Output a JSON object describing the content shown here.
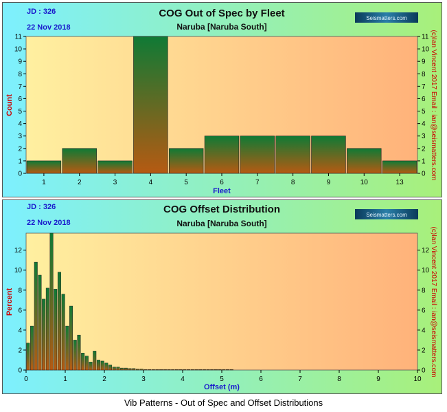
{
  "caption": "Vib Patterns - Out of Spec and Offset Distributions",
  "colors": {
    "panel_gradient_left": "#7df0ff",
    "panel_gradient_right": "#a8f07a",
    "plot_gradient_left": "#fff0a0",
    "plot_gradient_right": "#ffb27a",
    "bar_top": "#0f7a35",
    "bar_bottom": "#b65a12",
    "title_text": "#111111",
    "blue_text": "#1a1acc",
    "red_text": "#cc0000"
  },
  "logo_text": "Seismatters.com",
  "chart_data": [
    {
      "type": "bar",
      "jd": "JD : 326",
      "date": "22 Nov 2018",
      "title": "COG Out of Spec by Fleet",
      "subtitle": "Naruba  [Naruba South]",
      "xlabel": "Fleet",
      "ylabel": "Count",
      "right_label": "(c)Ian Vincent 2017   Email : ian@seismatters.com",
      "categories": [
        "1",
        "2",
        "3",
        "4",
        "5",
        "6",
        "7",
        "8",
        "9",
        "10",
        "13"
      ],
      "values": [
        1,
        2,
        1,
        11,
        2,
        3,
        3,
        3,
        3,
        2,
        1
      ],
      "ylim": [
        0,
        11
      ],
      "yticks": [
        "0",
        "1",
        "2",
        "3",
        "4",
        "5",
        "6",
        "7",
        "8",
        "9",
        "10",
        "11"
      ],
      "grid": false,
      "legend": "none"
    },
    {
      "type": "bar",
      "jd": "JD : 326",
      "date": "22 Nov 2018",
      "title": "COG Offset Distribution",
      "subtitle": "Naruba  [Naruba South]",
      "xlabel": "Offset (m)",
      "ylabel": "Percent",
      "right_label": "(c)Ian Vincent 2017   Email : ian@seismatters.com",
      "bin_width": 0.1,
      "x": [
        0.05,
        0.15,
        0.25,
        0.35,
        0.45,
        0.55,
        0.65,
        0.75,
        0.85,
        0.95,
        1.05,
        1.15,
        1.25,
        1.35,
        1.45,
        1.55,
        1.65,
        1.75,
        1.85,
        1.95,
        2.05,
        2.15,
        2.25,
        2.35,
        2.45,
        2.55,
        2.65,
        2.75,
        2.85,
        2.95,
        3.05,
        3.15,
        3.25,
        3.35,
        3.45,
        3.55,
        3.65,
        3.75,
        3.85,
        3.95,
        4.05,
        4.15,
        4.25,
        4.35,
        4.45,
        4.55,
        4.65,
        4.75,
        4.85,
        4.95,
        5.05,
        5.15,
        5.25
      ],
      "values": [
        2.7,
        4.4,
        10.8,
        9.5,
        7.1,
        8.2,
        13.7,
        8.1,
        9.8,
        7.6,
        4.4,
        6.4,
        3.0,
        3.5,
        1.7,
        1.4,
        0.8,
        1.9,
        1.0,
        0.9,
        0.7,
        0.5,
        0.3,
        0.3,
        0.2,
        0.2,
        0.15,
        0.15,
        0.1,
        0.1,
        0.05,
        0.05,
        0.05,
        0.05,
        0.05,
        0.05,
        0.05,
        0.05,
        0.05,
        0.05,
        0.05,
        0.05,
        0.05,
        0.05,
        0.05,
        0.05,
        0.05,
        0.05,
        0.05,
        0.05,
        0.05,
        0.05,
        0.05
      ],
      "xlim": [
        0,
        10
      ],
      "ylim": [
        0,
        13.7
      ],
      "xticks": [
        "0",
        "1",
        "2",
        "3",
        "4",
        "5",
        "6",
        "7",
        "8",
        "9",
        "10"
      ],
      "yticks": [
        "0",
        "2",
        "4",
        "6",
        "8",
        "10",
        "12"
      ],
      "grid": false,
      "legend": "none"
    }
  ]
}
